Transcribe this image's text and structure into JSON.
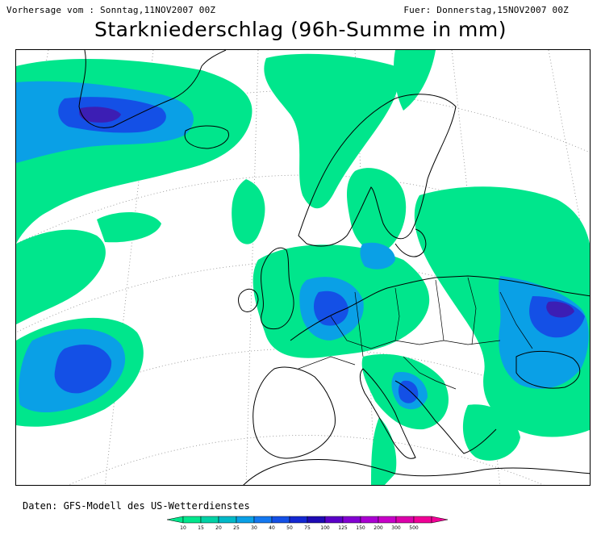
{
  "header": {
    "forecast_from": "Vorhersage vom : Sonntag,11NOV2007 00Z",
    "valid_for": "Fuer: Donnerstag,15NOV2007 00Z",
    "title": "Starkniederschlag (96h-Summe in mm)"
  },
  "footer": {
    "source": "Daten: GFS-Modell des US-Wetterdienstes"
  },
  "legend": {
    "levels": [
      "10",
      "15",
      "20",
      "25",
      "30",
      "40",
      "50",
      "75",
      "100",
      "125",
      "150",
      "200",
      "300",
      "500"
    ],
    "colors": [
      "#00e68c",
      "#00d2a5",
      "#00b9c8",
      "#0aa0e6",
      "#1478f0",
      "#1450e6",
      "#1428d2",
      "#1e0ab4",
      "#5a00c8",
      "#8200d2",
      "#aa00d2",
      "#c800c8",
      "#dc00aa",
      "#f00096"
    ]
  },
  "map": {
    "region": "Europe / North Atlantic",
    "precip_colors": {
      "light": "#00e68c",
      "moderate": "#0aa0e6",
      "heavy": "#1450e6",
      "very_heavy": "#3c1eb4"
    },
    "coast_color": "#000000",
    "graticule_color": "#7f7f7f"
  }
}
